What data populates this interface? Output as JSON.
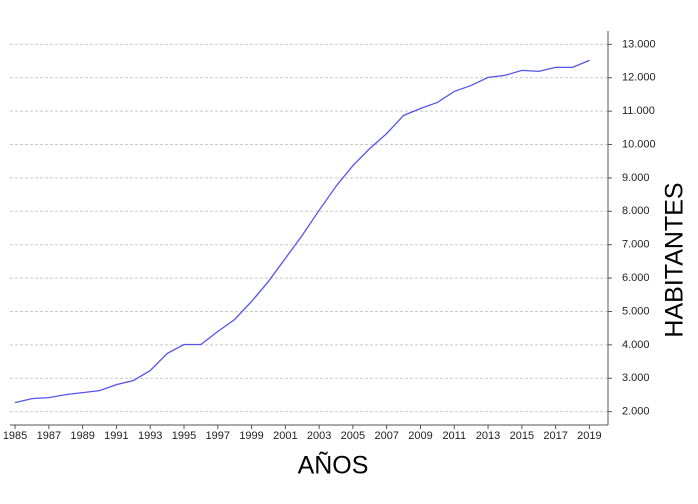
{
  "chart_data": {
    "type": "line",
    "x": [
      1985,
      1986,
      1987,
      1988,
      1989,
      1990,
      1991,
      1992,
      1993,
      1994,
      1995,
      1996,
      1997,
      1998,
      1999,
      2000,
      2001,
      2002,
      2003,
      2004,
      2005,
      2006,
      2007,
      2008,
      2009,
      2010,
      2011,
      2012,
      2013,
      2014,
      2015,
      2016,
      2017,
      2018,
      2019
    ],
    "series": [
      {
        "color": "#5555ee",
        "values": [
          2270,
          2390,
          2420,
          2510,
          2570,
          2630,
          2810,
          2930,
          3230,
          3740,
          4010,
          4010,
          4400,
          4760,
          5300,
          5900,
          6590,
          7280,
          8030,
          8750,
          9370,
          9880,
          10330,
          10870,
          11080,
          11260,
          11590,
          11770,
          12010,
          12070,
          12220,
          12190,
          12310,
          12310,
          12520
        ]
      }
    ],
    "xlabel": "AÑOS",
    "ylabel": "HABITANTES",
    "xlim": [
      1984.7,
      2020.1
    ],
    "xticks": [
      1985,
      1987,
      1989,
      1991,
      1993,
      1995,
      1997,
      1999,
      2001,
      2003,
      2005,
      2007,
      2009,
      2011,
      2013,
      2015,
      2017,
      2019
    ],
    "ylim": [
      1600,
      13400
    ],
    "yticks": [
      {
        "value": 2000,
        "label": "2.000"
      },
      {
        "value": 3000,
        "label": "3.000"
      },
      {
        "value": 4000,
        "label": "4.000"
      },
      {
        "value": 5000,
        "label": "5.000"
      },
      {
        "value": 6000,
        "label": "6.000"
      },
      {
        "value": 7000,
        "label": "7.000"
      },
      {
        "value": 8000,
        "label": "8.000"
      },
      {
        "value": 9000,
        "label": "9.000"
      },
      {
        "value": 10000,
        "label": "10.000"
      },
      {
        "value": 11000,
        "label": "11.000"
      },
      {
        "value": 12000,
        "label": "12.000"
      },
      {
        "value": 13000,
        "label": "13.000"
      }
    ],
    "grid": true,
    "y_axis_side": "right"
  }
}
